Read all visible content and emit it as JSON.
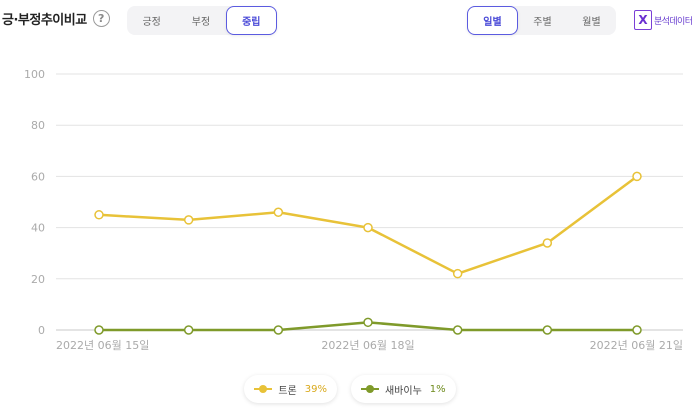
{
  "header": {
    "title": "긍·부정추이비교",
    "help": "?"
  },
  "sentiment_tabs": [
    {
      "label": "긍정",
      "active": false
    },
    {
      "label": "부정",
      "active": false
    },
    {
      "label": "중립",
      "active": true
    }
  ],
  "period_tabs": [
    {
      "label": "일별",
      "active": true
    },
    {
      "label": "주별",
      "active": false
    },
    {
      "label": "월별",
      "active": false
    }
  ],
  "export": {
    "label": "분석데이터",
    "icon_letter": "X"
  },
  "chart_data": {
    "type": "line",
    "x": [
      "2022-06-15",
      "2022-06-16",
      "2022-06-17",
      "2022-06-18",
      "2022-06-19",
      "2022-06-20",
      "2022-06-21"
    ],
    "x_tick_labels": {
      "0": "2022년 06월 15일",
      "3": "2022년 06월 18일",
      "6": "2022년 06월 21일"
    },
    "y_ticks": [
      0,
      20,
      40,
      60,
      80,
      100
    ],
    "ylim": [
      0,
      100
    ],
    "grid": true,
    "series": [
      {
        "name": "트론",
        "color": "#e8c238",
        "percent": "39%",
        "values": [
          45,
          43,
          46,
          40,
          22,
          34,
          60
        ]
      },
      {
        "name": "새바이누",
        "color": "#7f9a2a",
        "percent": "1%",
        "values": [
          0,
          0,
          0,
          3,
          0,
          0,
          0
        ]
      }
    ],
    "legend_position": "bottom-center"
  }
}
